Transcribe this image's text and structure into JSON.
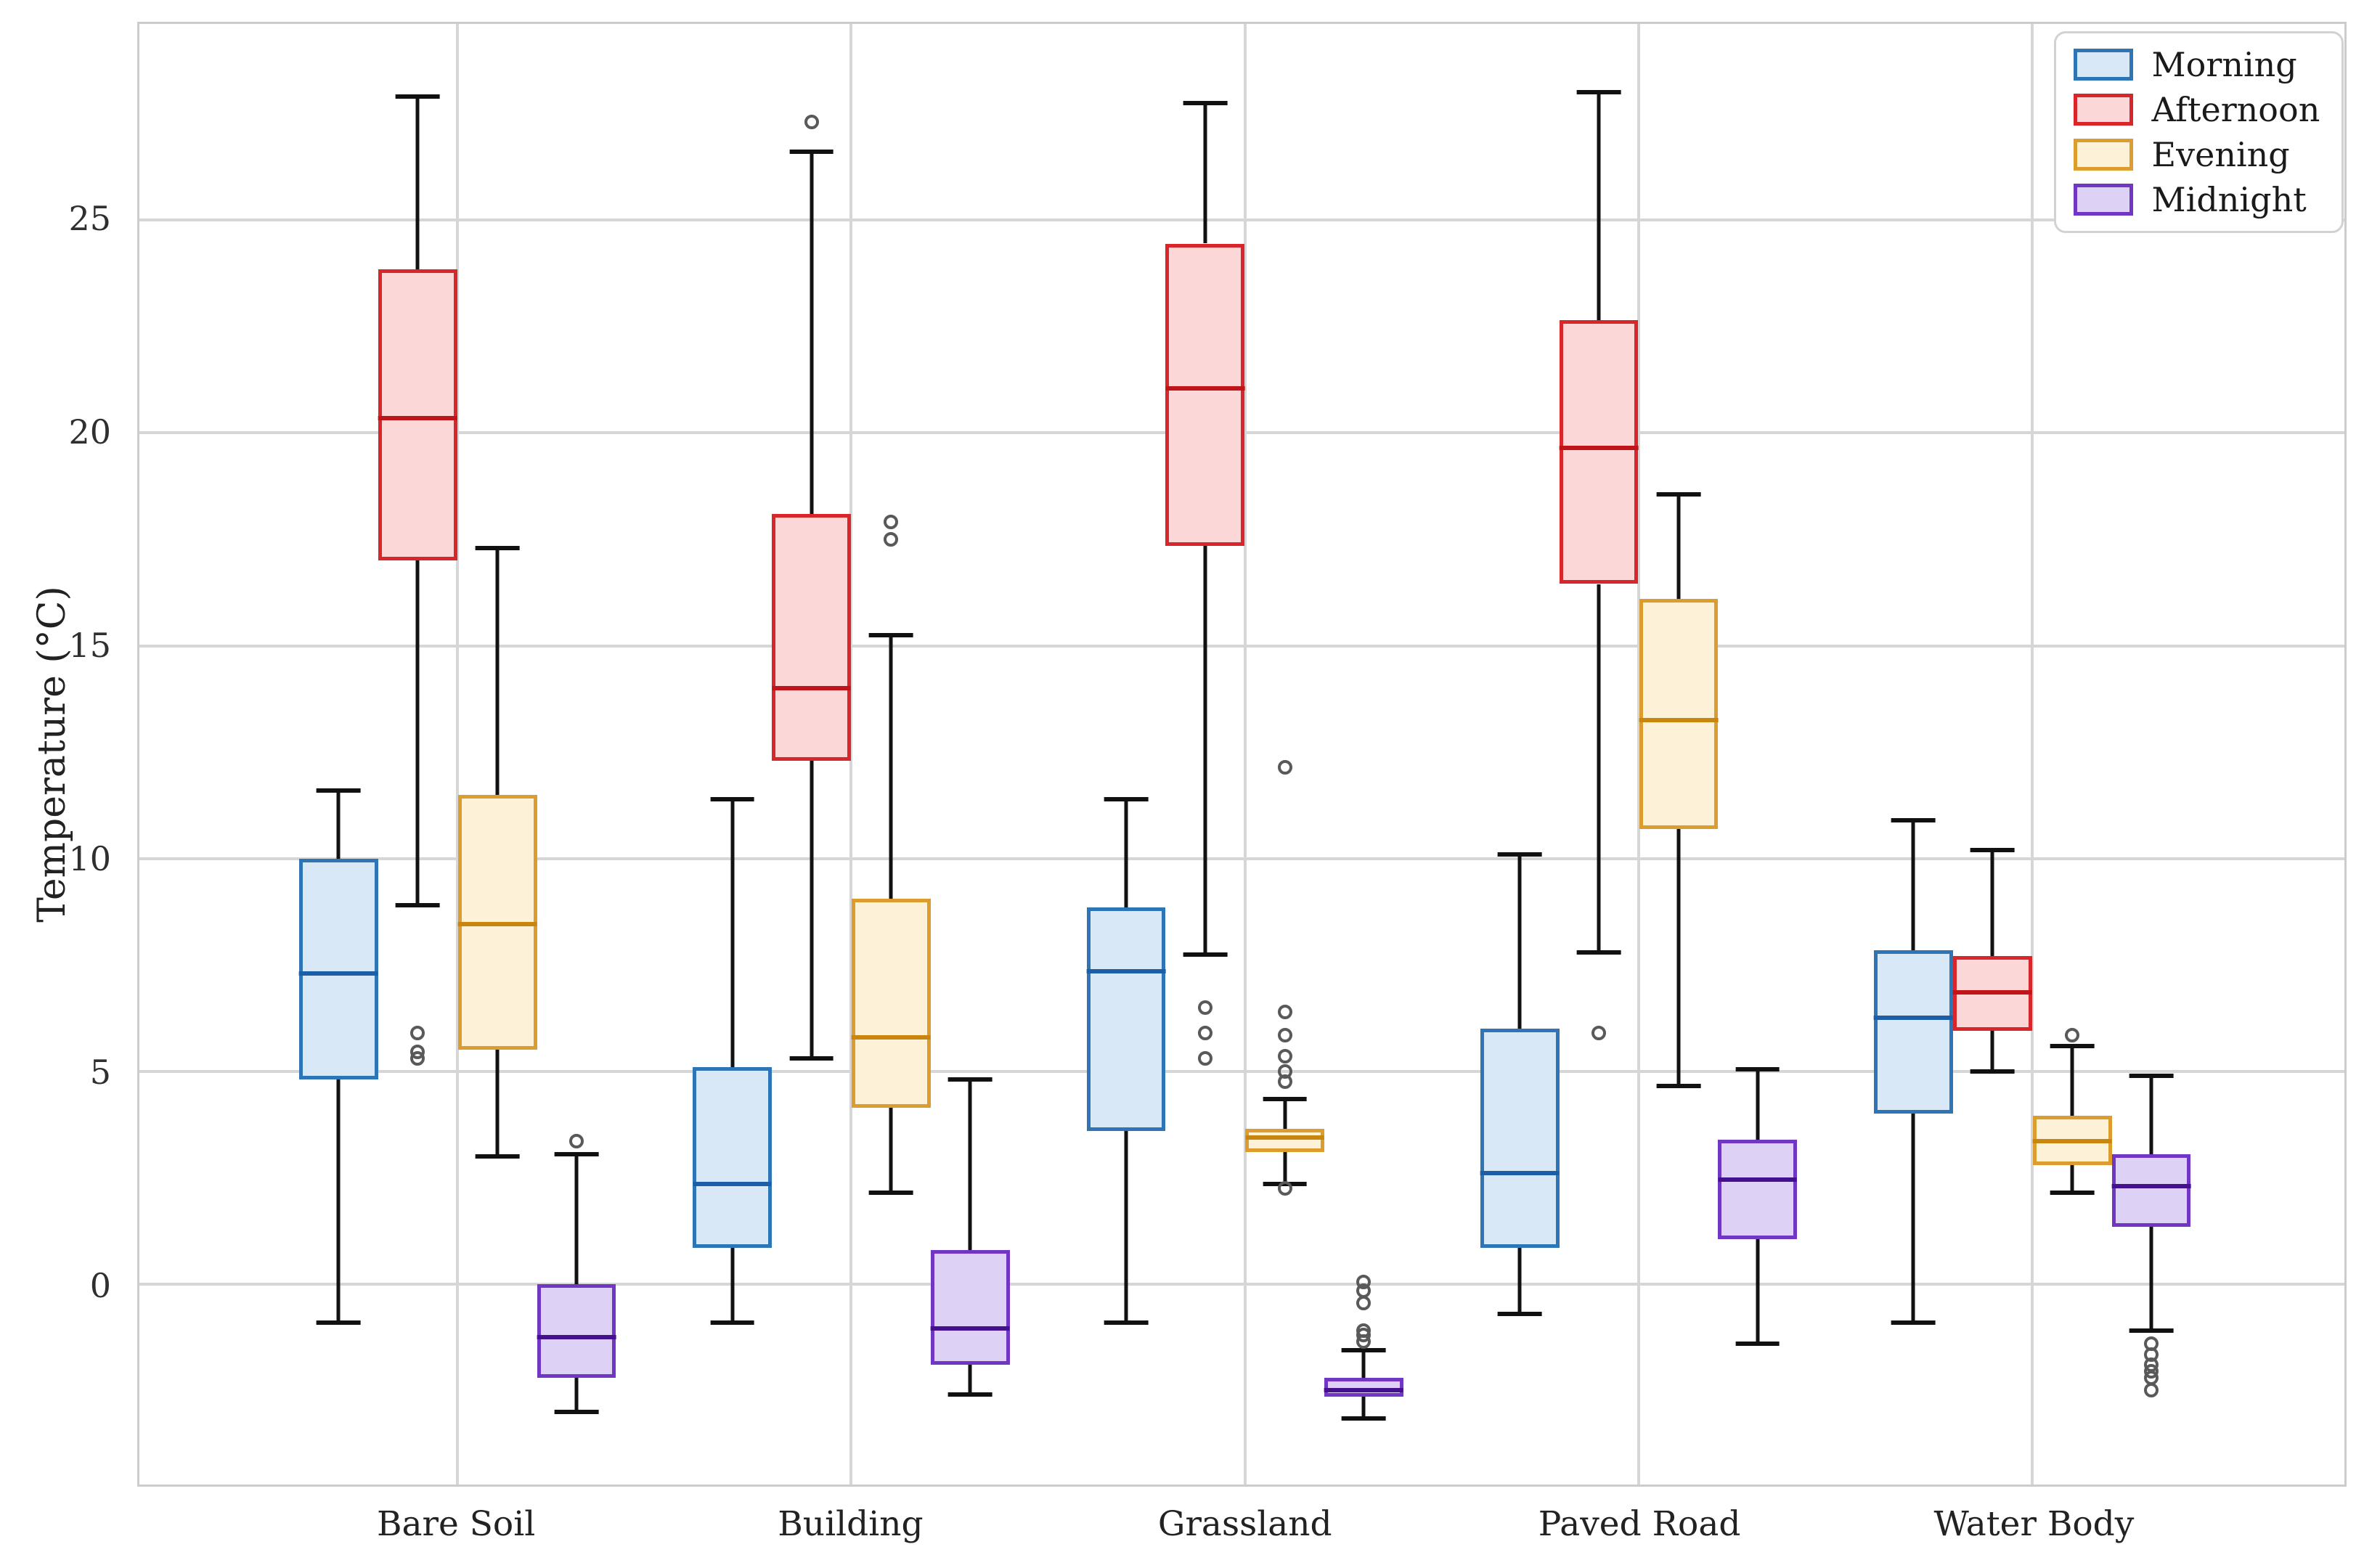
{
  "figure": {
    "background": "#ffffff"
  },
  "axes": {
    "ylabel": "Temperature (°C)",
    "grid_color": "#d6d6d6",
    "frame_color": "#cccccc",
    "tick_text_color": "#2f2f2f",
    "whisker_color": "#111111",
    "outlier_edge_color": "#595959"
  },
  "legend": {
    "position": "upper right",
    "items": [
      {
        "label": "Morning",
        "fill": "#d9e8f7",
        "edge": "#2e75b5"
      },
      {
        "label": "Afternoon",
        "fill": "#fcd7d7",
        "edge": "#d8262b"
      },
      {
        "label": "Evening",
        "fill": "#fdf1d8",
        "edge": "#dd9d2e"
      },
      {
        "label": "Midnight",
        "fill": "#ddd1f6",
        "edge": "#7137c4"
      }
    ]
  },
  "chart_data": {
    "type": "box",
    "title": "",
    "xlabel": "",
    "ylabel": "Temperature (°C)",
    "ylim": [
      -4.71,
      29.61
    ],
    "yticks": [
      0,
      5,
      10,
      15,
      20,
      25
    ],
    "grid": true,
    "legend_position": "upper right",
    "categories": [
      "Bare Soil",
      "Building",
      "Grassland",
      "Paved Road",
      "Water Body"
    ],
    "series": [
      {
        "name": "Morning",
        "edge_color": "#2e75b5",
        "fill_color": "#d9e8f7",
        "median_color": "#1d5fa6",
        "boxes": [
          {
            "category": "Bare Soil",
            "whislo": -0.9,
            "q1": 4.8,
            "med": 7.3,
            "q3": 10.0,
            "whishi": 11.6,
            "outliers": []
          },
          {
            "category": "Building",
            "whislo": -0.9,
            "q1": 0.85,
            "med": 2.35,
            "q3": 5.1,
            "whishi": 11.4,
            "outliers": []
          },
          {
            "category": "Grassland",
            "whislo": -0.9,
            "q1": 3.6,
            "med": 7.35,
            "q3": 8.85,
            "whishi": 11.4,
            "outliers": []
          },
          {
            "category": "Paved Road",
            "whislo": -0.7,
            "q1": 0.85,
            "med": 2.6,
            "q3": 6.0,
            "whishi": 10.1,
            "outliers": []
          },
          {
            "category": "Water Body",
            "whislo": -0.9,
            "q1": 4.0,
            "med": 6.25,
            "q3": 7.85,
            "whishi": 10.9,
            "outliers": []
          }
        ]
      },
      {
        "name": "Afternoon",
        "edge_color": "#d8262b",
        "fill_color": "#fcd7d7",
        "median_color": "#c01418",
        "boxes": [
          {
            "category": "Bare Soil",
            "whislo": 8.9,
            "q1": 17.0,
            "med": 20.35,
            "q3": 23.85,
            "whishi": 27.9,
            "outliers": [
              5.9,
              5.45,
              5.3
            ]
          },
          {
            "category": "Building",
            "whislo": 5.3,
            "q1": 12.3,
            "med": 14.0,
            "q3": 18.1,
            "whishi": 26.6,
            "outliers": [
              27.3
            ]
          },
          {
            "category": "Grassland",
            "whislo": 7.75,
            "q1": 17.35,
            "med": 21.05,
            "q3": 24.45,
            "whishi": 27.75,
            "outliers": [
              6.5,
              5.9,
              5.3
            ]
          },
          {
            "category": "Paved Road",
            "whislo": 7.8,
            "q1": 16.45,
            "med": 19.65,
            "q3": 22.65,
            "whishi": 28.0,
            "outliers": [
              5.9
            ]
          },
          {
            "category": "Water Body",
            "whislo": 5.0,
            "q1": 5.95,
            "med": 6.85,
            "q3": 7.7,
            "whishi": 10.2,
            "outliers": []
          }
        ]
      },
      {
        "name": "Evening",
        "edge_color": "#dd9d2e",
        "fill_color": "#fdf1d8",
        "median_color": "#c8860f",
        "boxes": [
          {
            "category": "Bare Soil",
            "whislo": 3.0,
            "q1": 5.5,
            "med": 8.45,
            "q3": 11.5,
            "whishi": 17.3,
            "outliers": []
          },
          {
            "category": "Building",
            "whislo": 2.15,
            "q1": 4.15,
            "med": 5.8,
            "q3": 9.05,
            "whishi": 15.25,
            "outliers": [
              17.9,
              17.5
            ]
          },
          {
            "category": "Grassland",
            "whislo": 2.35,
            "q1": 3.1,
            "med": 3.45,
            "q3": 3.65,
            "whishi": 4.35,
            "outliers": [
              12.15,
              6.4,
              5.85,
              5.35,
              5.0,
              4.75,
              2.25
            ]
          },
          {
            "category": "Paved Road",
            "whislo": 4.65,
            "q1": 10.7,
            "med": 13.25,
            "q3": 16.1,
            "whishi": 18.55,
            "outliers": []
          },
          {
            "category": "Water Body",
            "whislo": 2.15,
            "q1": 2.8,
            "med": 3.35,
            "q3": 3.95,
            "whishi": 5.6,
            "outliers": [
              5.85
            ]
          }
        ]
      },
      {
        "name": "Midnight",
        "edge_color": "#7137c4",
        "fill_color": "#ddd1f6",
        "median_color": "#45108e",
        "boxes": [
          {
            "category": "Bare Soil",
            "whislo": -3.0,
            "q1": -2.2,
            "med": -1.25,
            "q3": 0.0,
            "whishi": 3.05,
            "outliers": [
              3.35
            ]
          },
          {
            "category": "Building",
            "whislo": -2.6,
            "q1": -1.9,
            "med": -1.05,
            "q3": 0.8,
            "whishi": 4.8,
            "outliers": []
          },
          {
            "category": "Grassland",
            "whislo": -3.15,
            "q1": -2.65,
            "med": -2.5,
            "q3": -2.2,
            "whishi": -1.55,
            "outliers": [
              0.05,
              -0.15,
              -0.45,
              -1.1,
              -1.2,
              -1.35
            ]
          },
          {
            "category": "Paved Road",
            "whislo": -1.4,
            "q1": 1.05,
            "med": 2.45,
            "q3": 3.4,
            "whishi": 5.05,
            "outliers": []
          },
          {
            "category": "Water Body",
            "whislo": -1.1,
            "q1": 1.35,
            "med": 2.3,
            "q3": 3.05,
            "whishi": 4.9,
            "outliers": [
              -1.4,
              -1.65,
              -1.9,
              -2.05,
              -2.2,
              -2.5
            ]
          }
        ]
      }
    ]
  }
}
